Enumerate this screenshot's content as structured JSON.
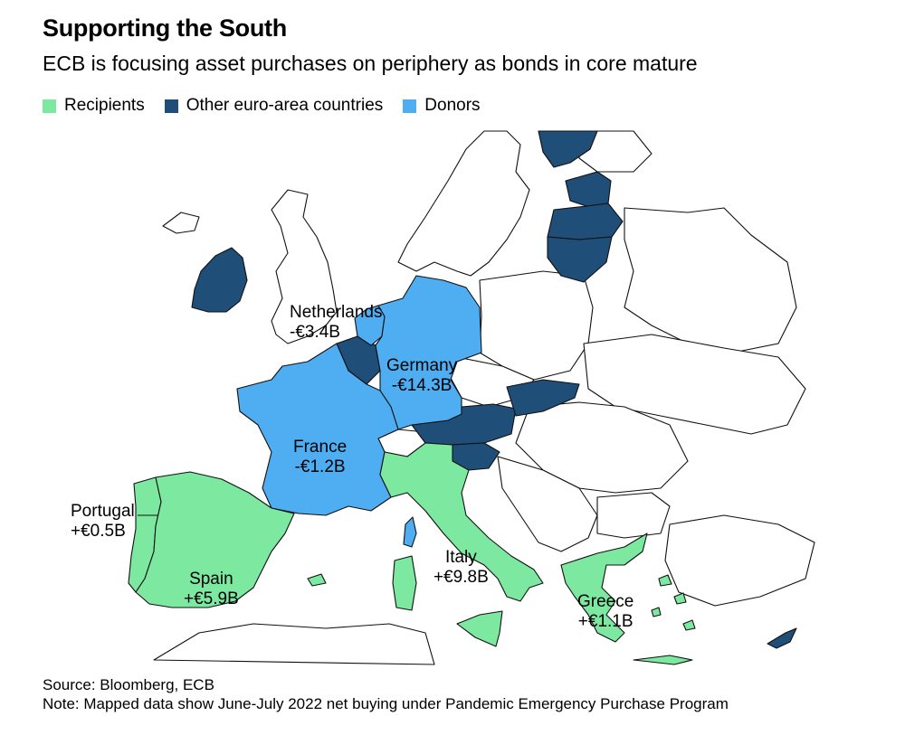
{
  "header": {
    "title": "Supporting the South",
    "subtitle": "ECB is focusing asset purchases on periphery as bonds in core mature"
  },
  "legend": [
    {
      "label": "Recipients",
      "color": "#7ce8a0"
    },
    {
      "label": "Other euro-area countries",
      "color": "#1f4e79"
    },
    {
      "label": "Donors",
      "color": "#4faef2"
    }
  ],
  "labels": {
    "netherlands": {
      "name": "Netherlands",
      "value": "-€3.4B"
    },
    "germany": {
      "name": "Germany",
      "value": "-€14.3B"
    },
    "france": {
      "name": "France",
      "value": "-€1.2B"
    },
    "portugal": {
      "name": "Portugal",
      "value": "+€0.5B"
    },
    "spain": {
      "name": "Spain",
      "value": "+€5.9B"
    },
    "italy": {
      "name": "Italy",
      "value": "+€9.8B"
    },
    "greece": {
      "name": "Greece",
      "value": "+€1.1B"
    }
  },
  "footer": {
    "source": "Source: Bloomberg, ECB",
    "note": "Note: Mapped data show June-July 2022 net buying under Pandemic Emergency Purchase Program"
  },
  "colors": {
    "recipients": "#7ce8a0",
    "other": "#1f4e79",
    "donors": "#4faef2",
    "border": "#111111"
  }
}
